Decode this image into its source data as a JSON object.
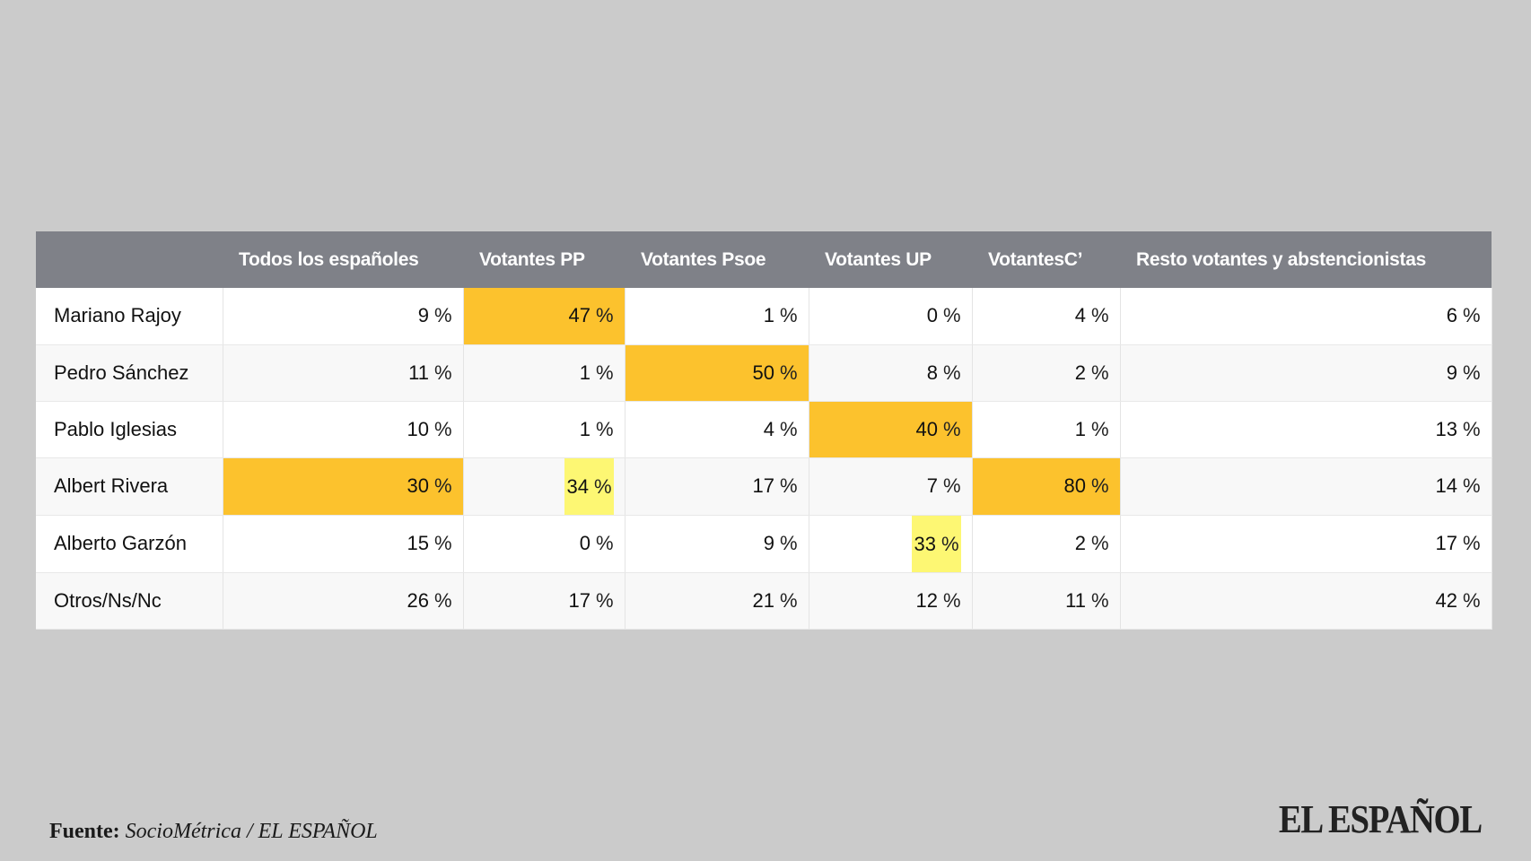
{
  "chart_data": {
    "type": "table",
    "columns": [
      "",
      "Todos los españoles",
      "Votantes PP",
      "Votantes Psoe",
      "Votantes UP",
      "VotantesC’",
      "Resto votantes y abstencionistas"
    ],
    "rows": [
      {
        "name": "Mariano Rajoy",
        "values": [
          9,
          47,
          1,
          0,
          4,
          6
        ],
        "highlights": [
          "",
          "orange",
          "",
          "",
          "",
          ""
        ]
      },
      {
        "name": "Pedro Sánchez",
        "values": [
          11,
          1,
          50,
          8,
          2,
          9
        ],
        "highlights": [
          "",
          "",
          "orange",
          "",
          "",
          ""
        ]
      },
      {
        "name": "Pablo Iglesias",
        "values": [
          10,
          1,
          4,
          40,
          1,
          13
        ],
        "highlights": [
          "",
          "",
          "",
          "orange",
          "",
          ""
        ]
      },
      {
        "name": "Albert Rivera",
        "values": [
          30,
          34,
          17,
          7,
          80,
          14
        ],
        "highlights": [
          "orange",
          "yellow",
          "",
          "",
          "orange",
          ""
        ]
      },
      {
        "name": "Alberto Garzón",
        "values": [
          15,
          0,
          9,
          33,
          2,
          17
        ],
        "highlights": [
          "",
          "",
          "",
          "yellow",
          "",
          ""
        ]
      },
      {
        "name": "Otros/Ns/Nc",
        "values": [
          26,
          17,
          21,
          12,
          11,
          42
        ],
        "highlights": [
          "",
          "",
          "",
          "",
          "",
          ""
        ]
      }
    ],
    "unit": "%"
  },
  "colors": {
    "background": "#cbcbcb",
    "header": "#7f8188",
    "highlight_orange": "#fcc22d",
    "highlight_yellow": "#fdf773"
  },
  "footer": {
    "source_label": "Fuente:",
    "source_text": "SocioMétrica / EL ESPAÑOL",
    "logo_text": "EL ESPAÑOL"
  }
}
